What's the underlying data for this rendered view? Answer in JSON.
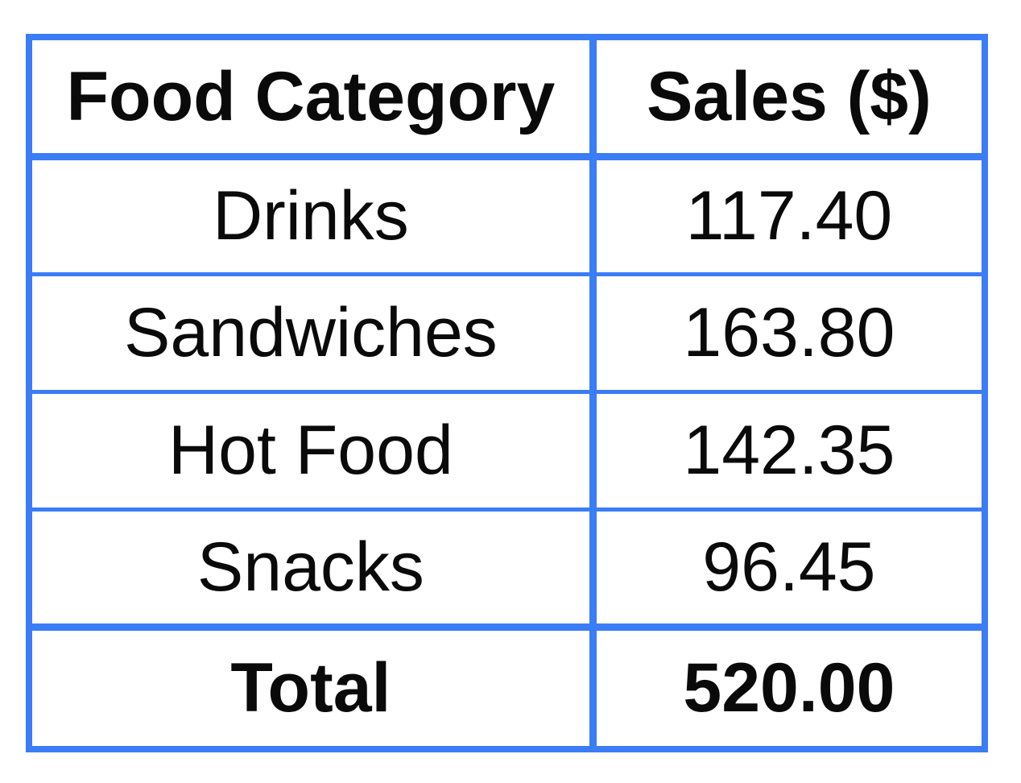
{
  "table": {
    "columns": [
      {
        "label": "Food Category"
      },
      {
        "label": "Sales ($)"
      }
    ],
    "rows": [
      {
        "category": "Drinks",
        "sales": "117.40"
      },
      {
        "category": "Sandwiches",
        "sales": "163.80"
      },
      {
        "category": "Hot Food",
        "sales": "142.35"
      },
      {
        "category": "Snacks",
        "sales": "96.45"
      }
    ],
    "total": {
      "label": "Total",
      "sales": "520.00"
    }
  },
  "colors": {
    "border": "#3b7cf7",
    "text": "#0a0a0a",
    "background": "#ffffff"
  },
  "chart_data": {
    "type": "table",
    "title": "",
    "columns": [
      "Food Category",
      "Sales ($)"
    ],
    "categories": [
      "Drinks",
      "Sandwiches",
      "Hot Food",
      "Snacks"
    ],
    "values": [
      117.4,
      163.8,
      142.35,
      96.45
    ],
    "total": {
      "label": "Total",
      "value": 520.0
    }
  }
}
